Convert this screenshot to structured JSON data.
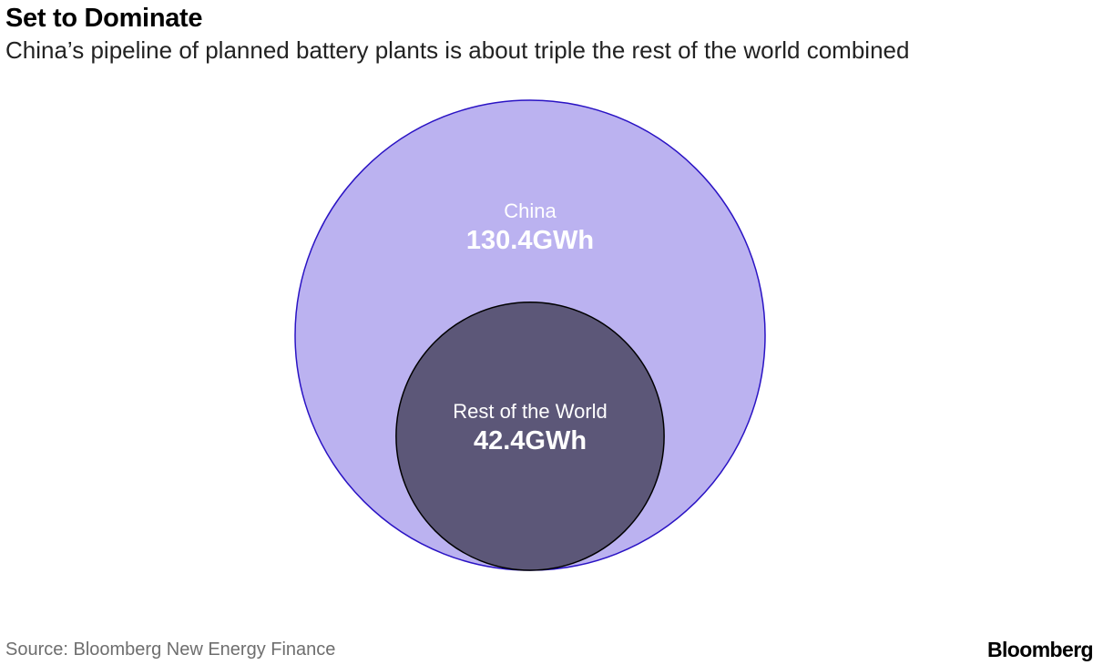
{
  "header": {
    "title": "Set to Dominate",
    "subtitle": "China’s pipeline of planned battery plants is about triple the rest of the world combined"
  },
  "chart_data": {
    "type": "nested-bubble",
    "title": "Set to Dominate",
    "subtitle": "China’s pipeline of planned battery plants is about triple the rest of the world combined",
    "unit": "GWh",
    "series": [
      {
        "name": "China",
        "value": 130.4,
        "label": "China",
        "value_label": "130.4GWh",
        "color": "#bbb2f0",
        "stroke": "#2a13c4"
      },
      {
        "name": "Rest of the World",
        "value": 42.4,
        "label": "Rest of the World",
        "value_label": "42.4GWh",
        "color": "#5c5778",
        "stroke": "#000000"
      }
    ]
  },
  "footer": {
    "source": "Source: Bloomberg New Energy Finance",
    "brand": "Bloomberg"
  }
}
